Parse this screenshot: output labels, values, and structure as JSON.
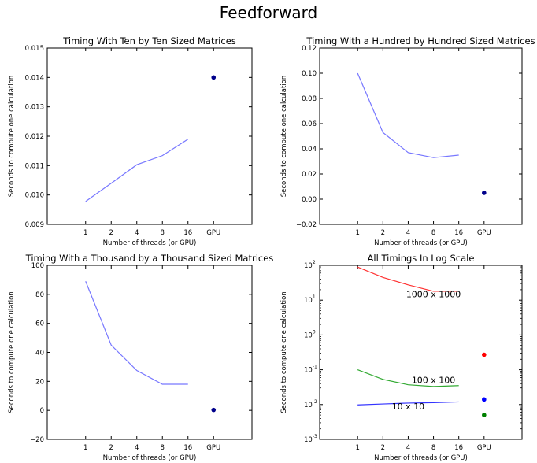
{
  "figure": {
    "title": "Feedforward"
  },
  "chart_data": [
    {
      "type": "line",
      "title": "Timing With Ten by Ten Sized Matrices",
      "xlabel": "Number of threads (or GPU)",
      "ylabel": "Seconds to compute one calculation",
      "categories": [
        "1",
        "2",
        "4",
        "8",
        "16",
        "GPU"
      ],
      "ylim": [
        0.009,
        0.015
      ],
      "yticks": [
        "0.009",
        "0.010",
        "0.011",
        "0.012",
        "0.013",
        "0.014",
        "0.015"
      ],
      "yscale": "linear",
      "series": [
        {
          "name": "",
          "color": "#7777ff",
          "kind": "line",
          "x": [
            "1",
            "2",
            "4",
            "8",
            "16"
          ],
          "values": [
            0.00978,
            0.0104,
            0.01103,
            0.01134,
            0.0119
          ]
        },
        {
          "name": "",
          "color": "#00008b",
          "kind": "point",
          "x": [
            "GPU"
          ],
          "values": [
            0.014
          ]
        }
      ],
      "annotations": []
    },
    {
      "type": "line",
      "title": "Timing With a Hundred by Hundred Sized Matrices",
      "xlabel": "Number of threads (or GPU)",
      "ylabel": "Seconds to compute one calculation",
      "categories": [
        "1",
        "2",
        "4",
        "8",
        "16",
        "GPU"
      ],
      "ylim": [
        -0.02,
        0.12
      ],
      "yticks": [
        "−0.02",
        "0.00",
        "0.02",
        "0.04",
        "0.06",
        "0.08",
        "0.10",
        "0.12"
      ],
      "yscale": "linear",
      "series": [
        {
          "name": "",
          "color": "#7777ff",
          "kind": "line",
          "x": [
            "1",
            "2",
            "4",
            "8",
            "16"
          ],
          "values": [
            0.1,
            0.053,
            0.037,
            0.033,
            0.035
          ]
        },
        {
          "name": "",
          "color": "#00008b",
          "kind": "point",
          "x": [
            "GPU"
          ],
          "values": [
            0.005
          ]
        }
      ],
      "annotations": []
    },
    {
      "type": "line",
      "title": "Timing With a Thousand by a Thousand Sized Matrices",
      "xlabel": "Number of threads (or GPU)",
      "ylabel": "Seconds to compute one calculation",
      "categories": [
        "1",
        "2",
        "4",
        "8",
        "16",
        "GPU"
      ],
      "ylim": [
        -20,
        100
      ],
      "yticks": [
        "−20",
        "0",
        "20",
        "40",
        "60",
        "80",
        "100"
      ],
      "yscale": "linear",
      "series": [
        {
          "name": "",
          "color": "#7777ff",
          "kind": "line",
          "x": [
            "1",
            "2",
            "4",
            "8",
            "16"
          ],
          "values": [
            89,
            45,
            27.5,
            18,
            18
          ]
        },
        {
          "name": "",
          "color": "#00008b",
          "kind": "point",
          "x": [
            "GPU"
          ],
          "values": [
            0.3
          ]
        }
      ],
      "annotations": []
    },
    {
      "type": "line",
      "title": "All Timings In Log Scale",
      "xlabel": "Number of threads (or GPU)",
      "ylabel": "Seconds to compute one calculation",
      "categories": [
        "1",
        "2",
        "4",
        "8",
        "16",
        "GPU"
      ],
      "ylim": [
        0.001,
        100
      ],
      "ytick_values": [
        0.001,
        0.01,
        0.1,
        1,
        10,
        100
      ],
      "ytick_base": [
        "10",
        "10",
        "10",
        "10",
        "10",
        "10"
      ],
      "ytick_exp": [
        "-3",
        "-2",
        "-1",
        "0",
        "1",
        "2"
      ],
      "yscale": "log",
      "series": [
        {
          "name": "",
          "color": "#ff3333",
          "kind": "line",
          "x": [
            "1",
            "2",
            "4",
            "8",
            "16"
          ],
          "values": [
            89,
            45,
            27.5,
            18,
            18
          ]
        },
        {
          "name": "",
          "color": "#33aa33",
          "kind": "line",
          "x": [
            "1",
            "2",
            "4",
            "8",
            "16"
          ],
          "values": [
            0.1,
            0.053,
            0.037,
            0.033,
            0.035
          ]
        },
        {
          "name": "",
          "color": "#3333ff",
          "kind": "line",
          "x": [
            "1",
            "2",
            "4",
            "8",
            "16"
          ],
          "values": [
            0.00978,
            0.0104,
            0.01103,
            0.01134,
            0.0119
          ]
        },
        {
          "name": "",
          "color": "#ff0000",
          "kind": "point",
          "x": [
            "GPU"
          ],
          "values": [
            0.27
          ]
        },
        {
          "name": "",
          "color": "#0000ff",
          "kind": "point",
          "x": [
            "GPU"
          ],
          "values": [
            0.014
          ]
        },
        {
          "name": "",
          "color": "#008000",
          "kind": "point",
          "x": [
            "GPU"
          ],
          "values": [
            0.005
          ]
        }
      ],
      "annotations": [
        {
          "text": "1000 x 1000",
          "x": "8",
          "y": 12
        },
        {
          "text": "100 x 100",
          "x": "8",
          "y": 0.042
        },
        {
          "text": "10 x 10",
          "x": "4",
          "y": 0.0072
        }
      ]
    }
  ]
}
